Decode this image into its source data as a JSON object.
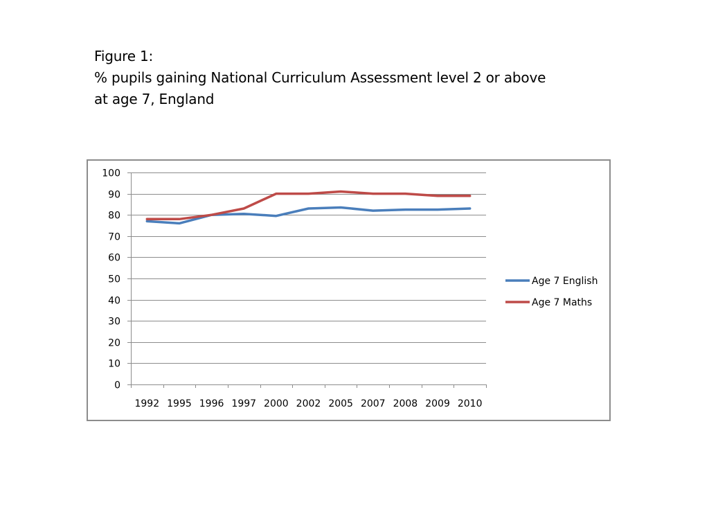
{
  "caption": {
    "line1": "Figure 1:",
    "line2": "% pupils gaining National Curriculum Assessment level 2 or above",
    "line3": "at age 7, England"
  },
  "chart_data": {
    "type": "line",
    "title": "",
    "xlabel": "",
    "ylabel": "",
    "categories": [
      "1992",
      "1995",
      "1996",
      "1997",
      "2000",
      "2002",
      "2005",
      "2007",
      "2008",
      "2009",
      "2010"
    ],
    "ylim": [
      0,
      100
    ],
    "yticks": [
      0,
      10,
      20,
      30,
      40,
      50,
      60,
      70,
      80,
      90,
      100
    ],
    "grid": true,
    "legend": "right",
    "series": [
      {
        "name": "Age 7 English",
        "color": "#4a7ebb",
        "values": [
          77,
          76,
          80,
          80.5,
          79.5,
          83,
          83.5,
          82,
          82.5,
          82.5,
          83
        ]
      },
      {
        "name": "Age 7 Maths",
        "color": "#be4b48",
        "values": [
          78,
          78,
          80,
          83,
          90,
          90,
          91,
          90,
          90,
          89,
          89
        ]
      }
    ]
  }
}
